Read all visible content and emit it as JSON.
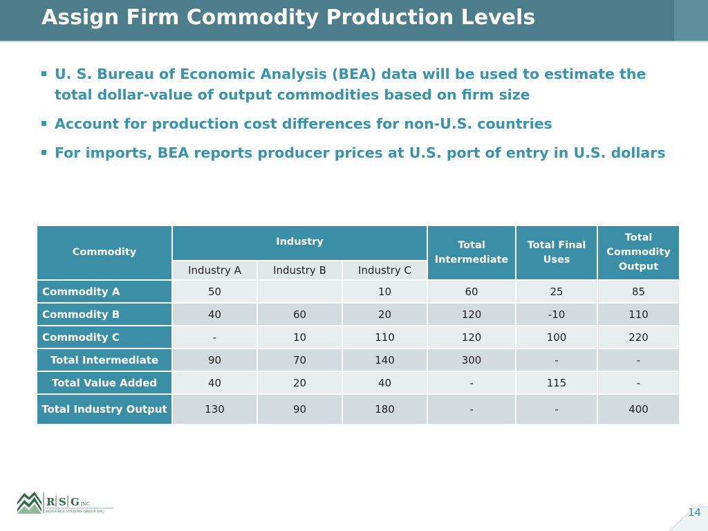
{
  "slide": {
    "title": "Assign Firm Commodity Production Levels",
    "page_number": "14"
  },
  "bullets": [
    "U. S. Bureau of Economic Analysis (BEA) data will be used to estimate the total dollar-value of output commodities based on firm size",
    "Account for production cost differences for non-U.S. countries",
    "For imports, BEA reports producer prices at U.S. port of entry in U.S. dollars"
  ],
  "table": {
    "header": {
      "commodity": "Commodity",
      "industry": "Industry",
      "total_intermediate": "Total Intermediate",
      "total_final_uses": "Total Final Uses",
      "total_commodity_output": "Total Commodity Output",
      "industries": [
        "Industry A",
        "Industry B",
        "Industry C"
      ]
    },
    "rows": [
      {
        "label": "Commodity A",
        "cells": [
          "50",
          "",
          "10",
          "60",
          "25",
          "85"
        ]
      },
      {
        "label": "Commodity B",
        "cells": [
          "40",
          "60",
          "20",
          "120",
          "-10",
          "110"
        ]
      },
      {
        "label": "Commodity C",
        "cells": [
          "-",
          "10",
          "110",
          "120",
          "100",
          "220"
        ]
      },
      {
        "label": "Total Intermediate",
        "cells": [
          "90",
          "70",
          "140",
          "300",
          "-",
          "-"
        ]
      },
      {
        "label": "Total Value Added",
        "cells": [
          "40",
          "20",
          "40",
          "-",
          "115",
          "-"
        ]
      },
      {
        "label": "Total Industry Output",
        "cells": [
          "130",
          "90",
          "180",
          "-",
          "-",
          "400"
        ]
      }
    ]
  },
  "logo": {
    "letters": [
      "R",
      "S",
      "G"
    ],
    "suffix": "INC.",
    "tagline": "RESOURCE SYSTEMS GROUP, INC.",
    "colors": {
      "green": "#2f6b45",
      "light_green": "#8fb89a",
      "text": "#2f6b45"
    }
  },
  "colors": {
    "title_bar": "#4e7d8c",
    "bullet_text": "#3a93ad",
    "table_header": "#3a8ea6",
    "row_light": "#e8edee",
    "row_dark": "#d2dcdf"
  }
}
